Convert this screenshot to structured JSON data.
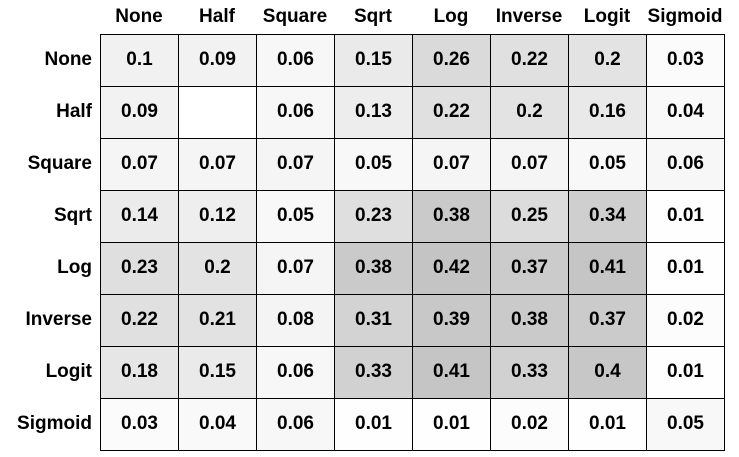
{
  "chart_data": {
    "type": "heatmap",
    "title": "",
    "xlabel": "",
    "ylabel": "",
    "columns": [
      "None",
      "Half",
      "Square",
      "Sqrt",
      "Log",
      "Inverse",
      "Logit",
      "Sigmoid"
    ],
    "rows": [
      "None",
      "Half",
      "Square",
      "Sqrt",
      "Log",
      "Inverse",
      "Logit",
      "Sigmoid"
    ],
    "values": [
      [
        0.1,
        0.09,
        0.06,
        0.15,
        0.26,
        0.22,
        0.2,
        0.03
      ],
      [
        0.09,
        null,
        0.06,
        0.13,
        0.22,
        0.2,
        0.16,
        0.04
      ],
      [
        0.07,
        0.07,
        0.07,
        0.05,
        0.07,
        0.07,
        0.05,
        0.06
      ],
      [
        0.14,
        0.12,
        0.05,
        0.23,
        0.38,
        0.25,
        0.34,
        0.01
      ],
      [
        0.23,
        0.2,
        0.07,
        0.38,
        0.42,
        0.37,
        0.41,
        0.01
      ],
      [
        0.22,
        0.21,
        0.08,
        0.31,
        0.39,
        0.38,
        0.37,
        0.02
      ],
      [
        0.18,
        0.15,
        0.06,
        0.33,
        0.41,
        0.33,
        0.4,
        0.01
      ],
      [
        0.03,
        0.04,
        0.06,
        0.01,
        0.01,
        0.02,
        0.01,
        0.05
      ]
    ],
    "value_labels": [
      [
        "0.1",
        "0.09",
        "0.06",
        "0.15",
        "0.26",
        "0.22",
        "0.2",
        "0.03"
      ],
      [
        "0.09",
        "",
        "0.06",
        "0.13",
        "0.22",
        "0.2",
        "0.16",
        "0.04"
      ],
      [
        "0.07",
        "0.07",
        "0.07",
        "0.05",
        "0.07",
        "0.07",
        "0.05",
        "0.06"
      ],
      [
        "0.14",
        "0.12",
        "0.05",
        "0.23",
        "0.38",
        "0.25",
        "0.34",
        "0.01"
      ],
      [
        "0.23",
        "0.2",
        "0.07",
        "0.38",
        "0.42",
        "0.37",
        "0.41",
        "0.01"
      ],
      [
        "0.22",
        "0.21",
        "0.08",
        "0.31",
        "0.39",
        "0.38",
        "0.37",
        "0.02"
      ],
      [
        "0.18",
        "0.15",
        "0.06",
        "0.33",
        "0.41",
        "0.33",
        "0.4",
        "0.01"
      ],
      [
        "0.03",
        "0.04",
        "0.06",
        "0.01",
        "0.01",
        "0.02",
        "0.01",
        "0.05"
      ]
    ],
    "color_scale": {
      "low": "#ffffff",
      "high": "#c4c4c4"
    },
    "grid": true,
    "legend": false
  }
}
